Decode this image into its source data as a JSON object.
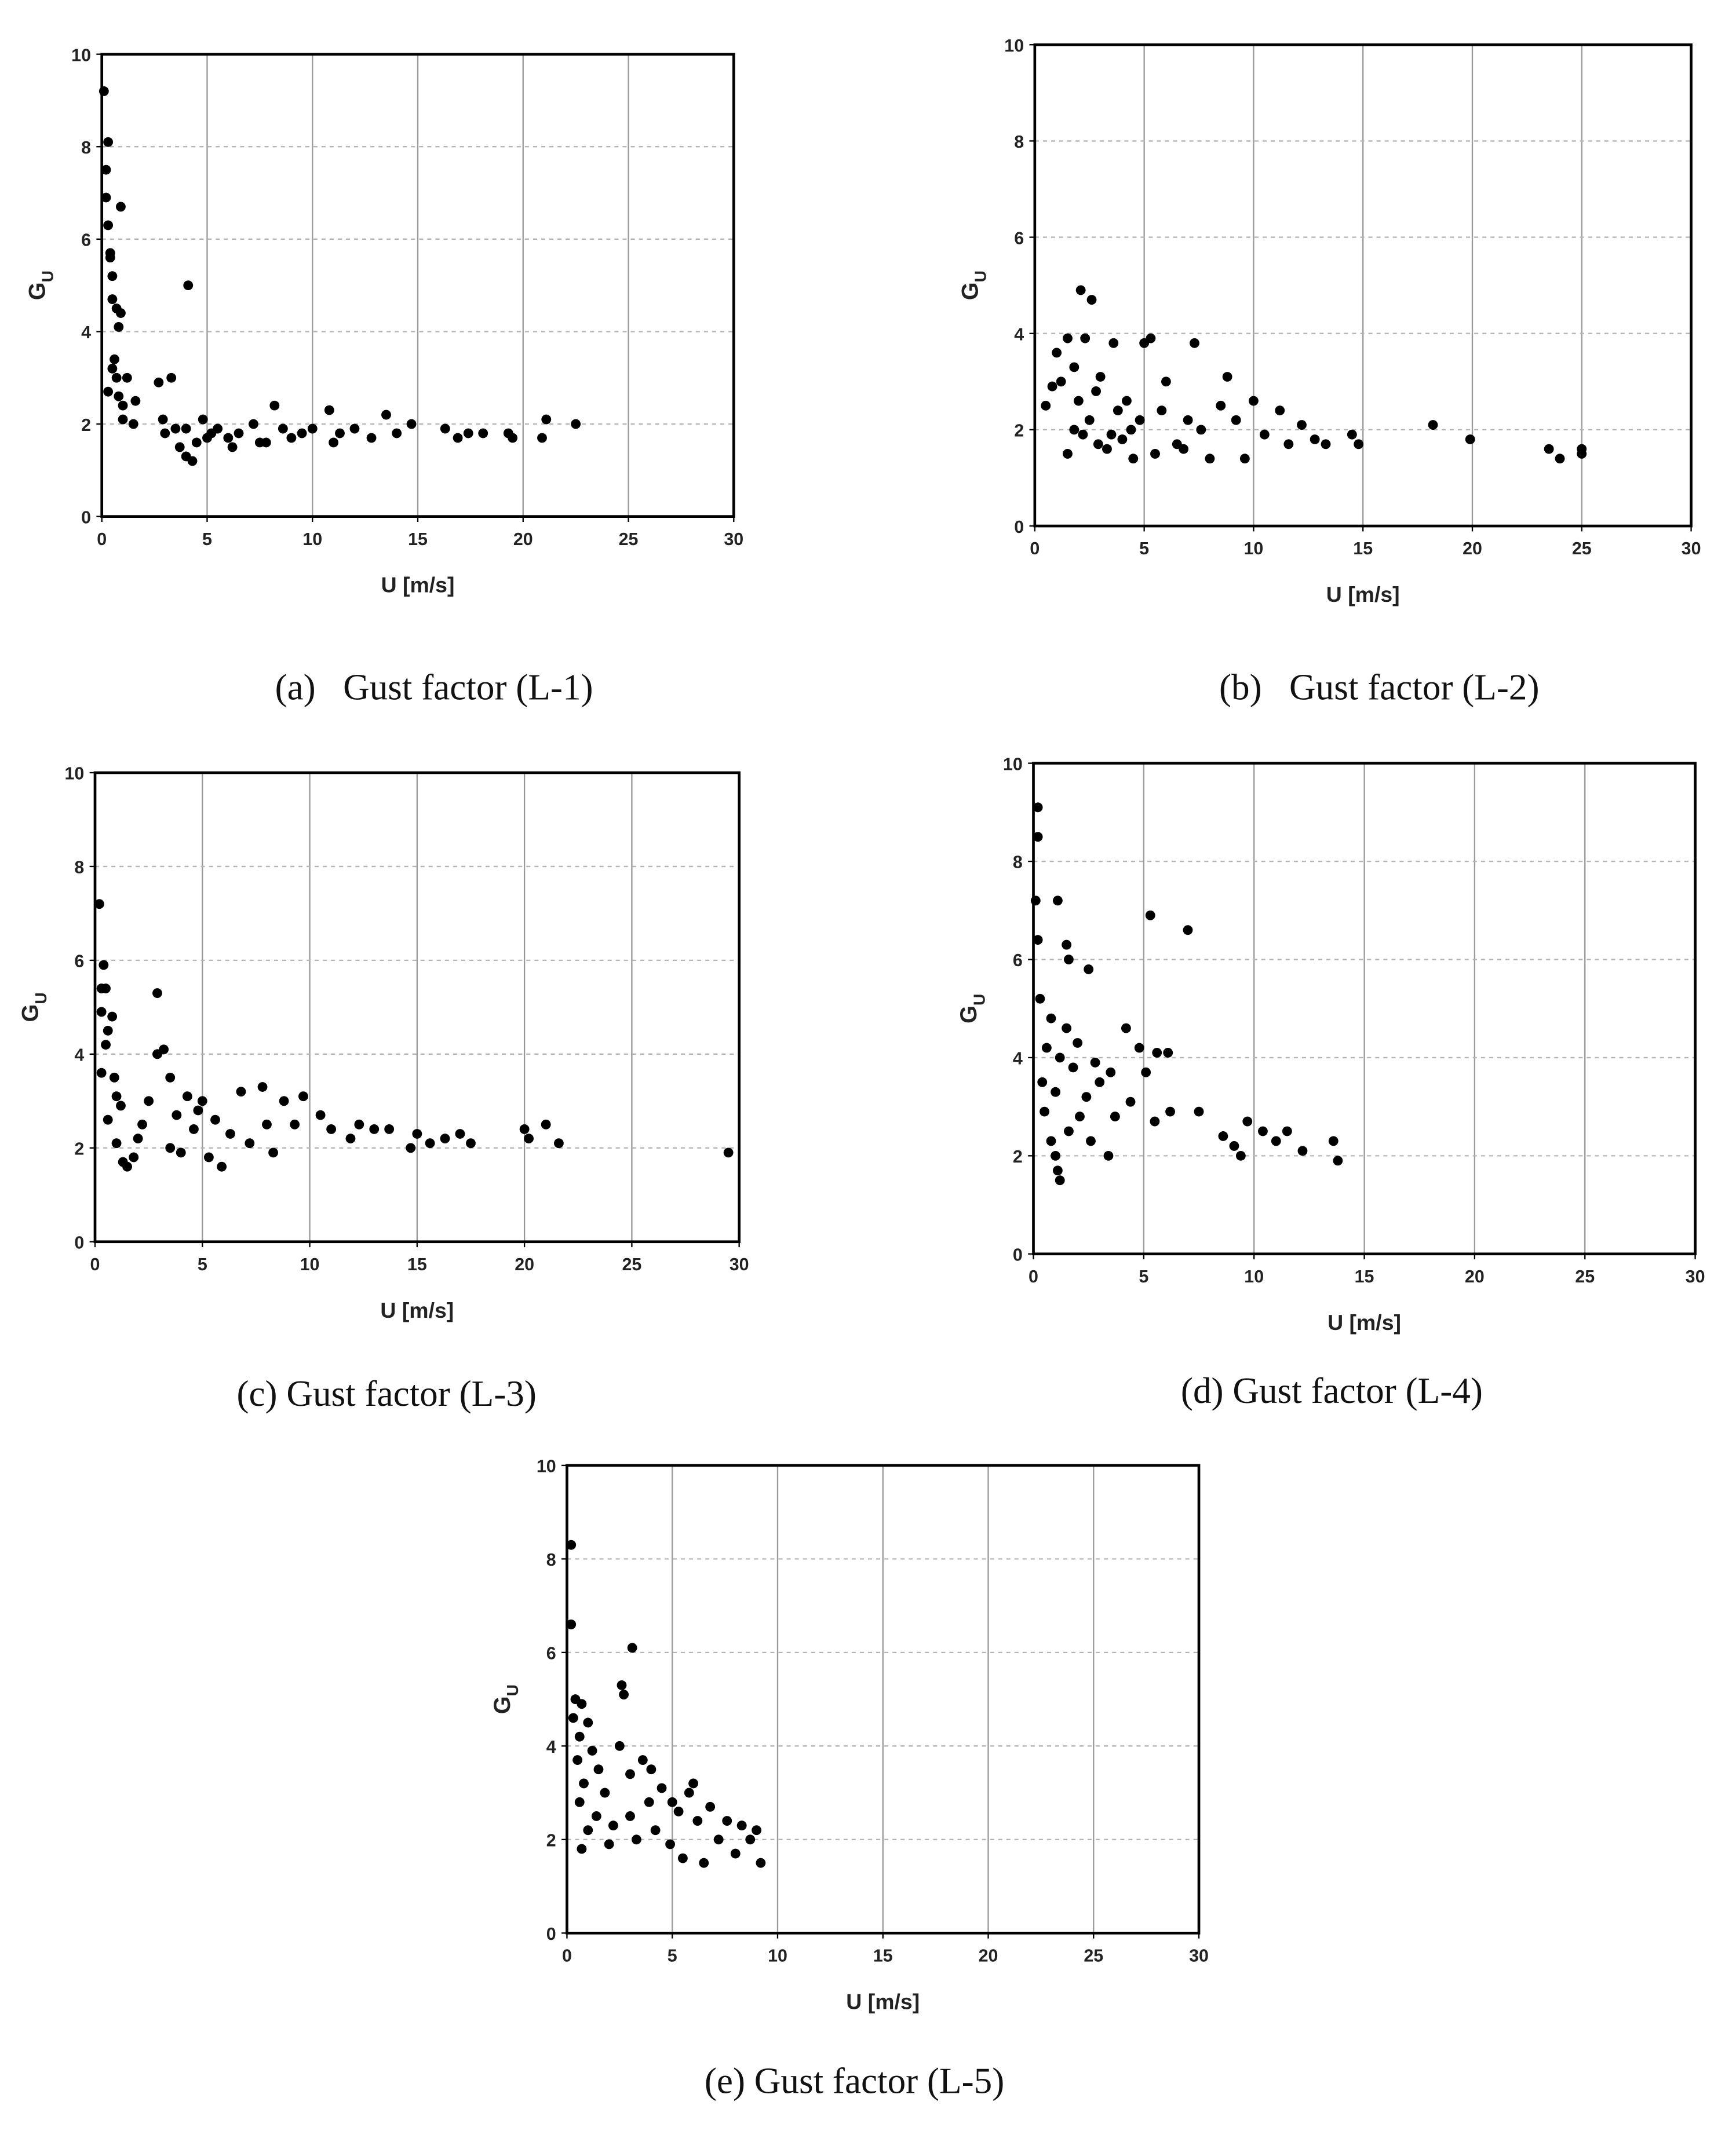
{
  "chart_data": [
    {
      "type": "scatter",
      "title": "(a)   Gust factor (L-1)",
      "xlabel": "U [m/s]",
      "ylabel": "G",
      "ylabel_sub": "U",
      "color": "#000000",
      "grid": true,
      "xlim": [
        0,
        30
      ],
      "ylim": [
        0,
        10
      ],
      "xticks": [
        0,
        5,
        10,
        15,
        20,
        25,
        30
      ],
      "yticks": [
        0,
        2,
        4,
        6,
        8,
        10
      ],
      "x": [
        0.1,
        0.2,
        0.3,
        0.2,
        0.3,
        0.4,
        0.4,
        0.5,
        0.9,
        4.1,
        0.5,
        0.7,
        0.9,
        0.8,
        0.6,
        0.5,
        0.7,
        1.2,
        0.3,
        0.8,
        1.0,
        1.6,
        1.0,
        1.5,
        2.7,
        3.3,
        2.9,
        3.5,
        3.7,
        4.0,
        4.3,
        4.5,
        4.8,
        5.2,
        5.5,
        6.0,
        6.5,
        7.2,
        7.5,
        8.2,
        8.6,
        9.0,
        9.5,
        10.0,
        10.8,
        11.3,
        12.0,
        12.8,
        13.5,
        14.0,
        14.7,
        16.3,
        16.9,
        17.4,
        18.1,
        19.3,
        19.5,
        20.9,
        21.1,
        22.5,
        3.0,
        4.0,
        5.0,
        6.2,
        7.8,
        11.0
      ],
      "values": [
        9.2,
        7.5,
        8.1,
        6.9,
        6.3,
        5.7,
        5.6,
        5.2,
        6.7,
        5.0,
        4.7,
        4.5,
        4.4,
        4.1,
        3.4,
        3.2,
        3.0,
        3.0,
        2.7,
        2.6,
        2.4,
        2.5,
        2.1,
        2.0,
        2.9,
        3.0,
        2.1,
        1.9,
        1.5,
        1.3,
        1.2,
        1.6,
        2.1,
        1.8,
        1.9,
        1.7,
        1.8,
        2.0,
        1.6,
        2.4,
        1.9,
        1.7,
        1.8,
        1.9,
        2.3,
        1.8,
        1.9,
        1.7,
        2.2,
        1.8,
        2.0,
        1.9,
        1.7,
        1.8,
        1.8,
        1.8,
        1.7,
        1.7,
        2.1,
        2.0,
        1.8,
        1.9,
        1.7,
        1.5,
        1.6,
        1.6
      ]
    },
    {
      "type": "scatter",
      "title": "(b)   Gust factor (L-2)",
      "xlabel": "U [m/s]",
      "ylabel": "G",
      "ylabel_sub": "U",
      "color": "#000000",
      "grid": true,
      "xlim": [
        0,
        30
      ],
      "ylim": [
        0,
        10
      ],
      "xticks": [
        0,
        5,
        10,
        15,
        20,
        25,
        30
      ],
      "yticks": [
        0,
        2,
        4,
        6,
        8,
        10
      ],
      "x": [
        0.5,
        0.8,
        1.0,
        1.2,
        1.5,
        1.8,
        2.1,
        2.3,
        2.6,
        2.0,
        2.5,
        1.5,
        2.2,
        2.8,
        3.0,
        3.3,
        3.6,
        3.8,
        4.0,
        4.2,
        4.5,
        4.8,
        5.0,
        5.3,
        5.5,
        5.8,
        6.0,
        6.5,
        7.0,
        7.3,
        7.6,
        8.0,
        8.5,
        8.8,
        9.2,
        9.6,
        10.0,
        10.5,
        11.2,
        11.6,
        12.2,
        12.8,
        13.3,
        14.5,
        14.8,
        18.2,
        19.9,
        23.5,
        24.0,
        25.0,
        25.0,
        3.5,
        4.4,
        6.8,
        1.8,
        2.9
      ],
      "values": [
        2.5,
        2.9,
        3.6,
        3.0,
        3.9,
        3.3,
        4.9,
        3.9,
        4.7,
        2.6,
        2.2,
        1.5,
        1.9,
        2.8,
        3.1,
        1.6,
        3.8,
        2.4,
        1.8,
        2.6,
        1.4,
        2.2,
        3.8,
        3.9,
        1.5,
        2.4,
        3.0,
        1.7,
        2.2,
        3.8,
        2.0,
        1.4,
        2.5,
        3.1,
        2.2,
        1.4,
        2.6,
        1.9,
        2.4,
        1.7,
        2.1,
        1.8,
        1.7,
        1.9,
        1.7,
        2.1,
        1.8,
        1.6,
        1.4,
        1.6,
        1.5,
        1.9,
        2.0,
        1.6,
        2.0,
        1.7
      ]
    },
    {
      "type": "scatter",
      "title": "(c) Gust factor (L-3)",
      "xlabel": "U [m/s]",
      "ylabel": "G",
      "ylabel_sub": "U",
      "color": "#000000",
      "grid": true,
      "xlim": [
        0,
        30
      ],
      "ylim": [
        0,
        10
      ],
      "xticks": [
        0,
        5,
        10,
        15,
        20,
        25,
        30
      ],
      "yticks": [
        0,
        2,
        4,
        6,
        8,
        10
      ],
      "x": [
        0.2,
        0.3,
        0.4,
        0.5,
        0.3,
        0.6,
        0.8,
        0.5,
        0.3,
        0.9,
        1.0,
        1.2,
        0.6,
        1.0,
        1.3,
        1.5,
        1.8,
        2.0,
        2.2,
        2.5,
        2.9,
        2.9,
        3.2,
        3.5,
        3.8,
        4.0,
        4.3,
        4.6,
        5.0,
        5.3,
        5.6,
        5.9,
        6.3,
        6.8,
        7.2,
        7.8,
        8.0,
        8.3,
        8.8,
        9.3,
        9.7,
        10.5,
        11.0,
        11.9,
        12.3,
        13.0,
        13.7,
        14.7,
        15.0,
        15.6,
        16.3,
        17.0,
        17.5,
        20.0,
        20.2,
        21.0,
        21.6,
        29.5,
        3.5,
        4.8
      ],
      "values": [
        7.2,
        5.4,
        5.9,
        5.4,
        4.9,
        4.5,
        4.8,
        4.2,
        3.6,
        3.5,
        3.1,
        2.9,
        2.6,
        2.1,
        1.7,
        1.6,
        1.8,
        2.2,
        2.5,
        3.0,
        5.3,
        4.0,
        4.1,
        3.5,
        2.7,
        1.9,
        3.1,
        2.4,
        3.0,
        1.8,
        2.6,
        1.6,
        2.3,
        3.2,
        2.1,
        3.3,
        2.5,
        1.9,
        3.0,
        2.5,
        3.1,
        2.7,
        2.4,
        2.2,
        2.5,
        2.4,
        2.4,
        2.0,
        2.3,
        2.1,
        2.2,
        2.3,
        2.1,
        2.4,
        2.2,
        2.5,
        2.1,
        1.9,
        2.0,
        2.8
      ]
    },
    {
      "type": "scatter",
      "title": "(d) Gust factor (L-4)",
      "xlabel": "U [m/s]",
      "ylabel": "G",
      "ylabel_sub": "U",
      "color": "#000000",
      "grid": true,
      "xlim": [
        0,
        30
      ],
      "ylim": [
        0,
        10
      ],
      "xticks": [
        0,
        5,
        10,
        15,
        20,
        25,
        30
      ],
      "yticks": [
        0,
        2,
        4,
        6,
        8,
        10
      ],
      "x": [
        0.2,
        0.2,
        0.1,
        1.1,
        0.2,
        1.5,
        1.6,
        2.5,
        5.3,
        7.0,
        0.3,
        0.8,
        1.5,
        0.6,
        1.2,
        2.0,
        2.8,
        3.5,
        4.2,
        4.8,
        0.4,
        1.0,
        1.8,
        2.4,
        3.0,
        3.7,
        4.4,
        5.1,
        5.6,
        6.1,
        0.5,
        0.8,
        1.0,
        1.1,
        1.2,
        1.6,
        2.1,
        2.6,
        3.4,
        5.5,
        6.2,
        7.5,
        8.6,
        9.1,
        9.4,
        9.7,
        10.4,
        11.0,
        11.5,
        12.2,
        13.6,
        13.8
      ],
      "values": [
        9.1,
        8.5,
        7.2,
        7.2,
        6.4,
        6.3,
        6.0,
        5.8,
        6.9,
        6.6,
        5.2,
        4.8,
        4.6,
        4.2,
        4.0,
        4.3,
        3.9,
        3.7,
        4.6,
        4.2,
        3.5,
        3.3,
        3.8,
        3.2,
        3.5,
        2.8,
        3.1,
        3.7,
        4.1,
        4.1,
        2.9,
        2.3,
        2.0,
        1.7,
        1.5,
        2.5,
        2.8,
        2.3,
        2.0,
        2.7,
        2.9,
        2.9,
        2.4,
        2.2,
        2.0,
        2.7,
        2.5,
        2.3,
        2.5,
        2.1,
        2.3,
        1.9
      ]
    },
    {
      "type": "scatter",
      "title": "(e) Gust factor (L-5)",
      "xlabel": "U [m/s]",
      "ylabel": "G",
      "ylabel_sub": "U",
      "color": "#000000",
      "grid": true,
      "xlim": [
        0,
        30
      ],
      "ylim": [
        0,
        10
      ],
      "xticks": [
        0,
        5,
        10,
        15,
        20,
        25,
        30
      ],
      "yticks": [
        0,
        2,
        4,
        6,
        8,
        10
      ],
      "x": [
        0.2,
        0.2,
        0.4,
        0.7,
        0.3,
        0.6,
        1.0,
        0.5,
        0.8,
        1.2,
        1.5,
        0.6,
        1.0,
        0.7,
        1.4,
        1.8,
        2.2,
        2.5,
        2.6,
        2.7,
        3.1,
        3.0,
        3.3,
        3.6,
        3.9,
        4.2,
        4.5,
        4.9,
        5.3,
        5.5,
        5.8,
        6.2,
        6.5,
        6.8,
        7.2,
        7.6,
        8.0,
        8.3,
        8.7,
        9.0,
        9.2,
        2.0,
        3.0,
        4.0,
        5.0,
        6.0
      ],
      "values": [
        8.3,
        6.6,
        5.0,
        4.9,
        4.6,
        4.2,
        4.5,
        3.7,
        3.2,
        3.9,
        3.5,
        2.8,
        2.2,
        1.8,
        2.5,
        3.0,
        2.3,
        4.0,
        5.3,
        5.1,
        6.1,
        3.4,
        2.0,
        3.7,
        2.8,
        2.2,
        3.1,
        1.9,
        2.6,
        1.6,
        3.0,
        2.4,
        1.5,
        2.7,
        2.0,
        2.4,
        1.7,
        2.3,
        2.0,
        2.2,
        1.5,
        1.9,
        2.5,
        3.5,
        2.8,
        3.2
      ]
    }
  ]
}
